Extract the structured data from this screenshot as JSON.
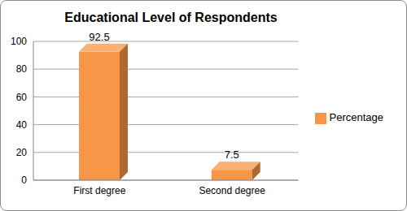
{
  "chart_data": {
    "type": "bar",
    "title": "Educational Level of Respondents",
    "categories": [
      "First degree",
      "Second degree"
    ],
    "series": [
      {
        "name": "Percentage",
        "color": "#f79646",
        "values": [
          92.5,
          7.5
        ]
      }
    ],
    "ylim": [
      0,
      100
    ],
    "yticks": [
      0,
      20,
      40,
      60,
      80,
      100
    ],
    "grid": true,
    "legend": "right",
    "data_labels": true
  }
}
